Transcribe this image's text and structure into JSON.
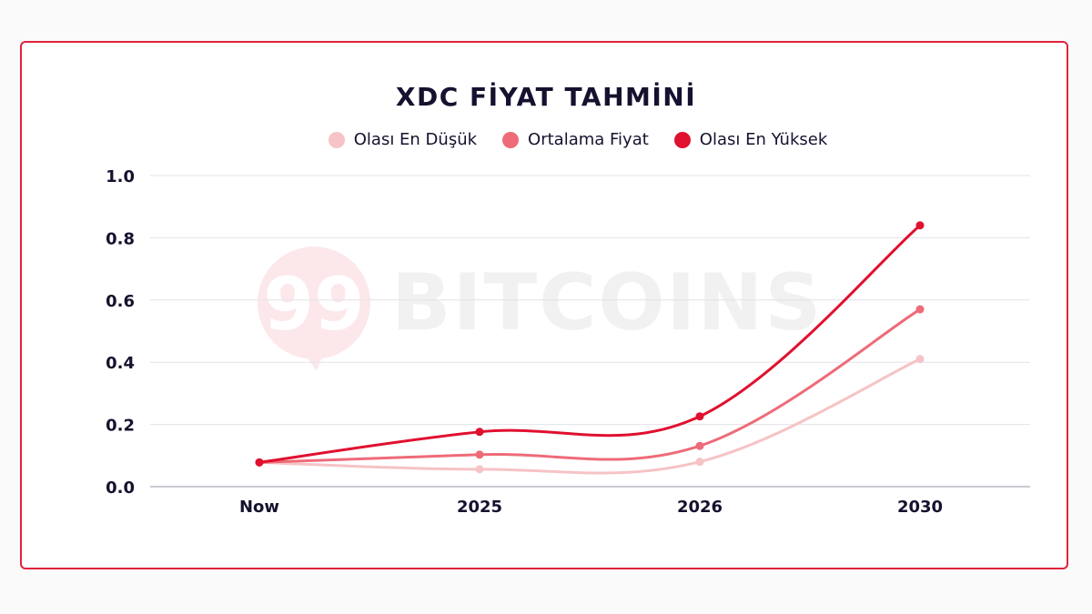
{
  "chart_data": {
    "type": "line",
    "title": "XDC FİYAT TAHMİNİ",
    "categories": [
      "Now",
      "2025",
      "2026",
      "2030"
    ],
    "series": [
      {
        "name": "Olası En Düşük",
        "color": "#f6c3c6",
        "values": [
          0.078,
          0.056,
          0.08,
          0.41
        ]
      },
      {
        "name": "Ortalama Fiyat",
        "color": "#ee6b78",
        "values": [
          0.078,
          0.103,
          0.131,
          0.57
        ]
      },
      {
        "name": "Olası En Yüksek",
        "color": "#e0102f",
        "values": [
          0.078,
          0.176,
          0.226,
          0.84
        ]
      }
    ],
    "yticks": [
      "0.0",
      "0.2",
      "0.4",
      "0.6",
      "0.8",
      "1.0"
    ],
    "ylim": [
      0,
      1.0
    ],
    "grid": true,
    "legend_position": "top-center"
  },
  "watermark": {
    "logo_text": "99",
    "brand_text": "BITCOINS"
  }
}
